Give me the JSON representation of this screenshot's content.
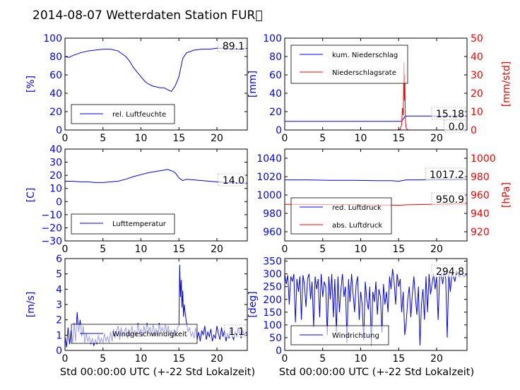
{
  "title": "2014-08-07 Wetterdaten Station FUR\u0000",
  "xlabel": "Std 00:00:00 UTC (+-22 Std Lokalzeit)",
  "colors": {
    "primary": "#0000ff",
    "secondary": "#ff0000",
    "axis": "#000000"
  },
  "chart_data": [
    {
      "type": "line",
      "ylabel": "[%]",
      "xlim": [
        0,
        24
      ],
      "ylim": [
        0,
        100
      ],
      "xticks": [
        "0",
        "5",
        "10",
        "15",
        "20"
      ],
      "yticks": [
        "0",
        "20",
        "40",
        "60",
        "80",
        "100"
      ],
      "series": [
        {
          "name": "rel. Luftfeuchte",
          "x": [
            0,
            0.5,
            1,
            2,
            3,
            4,
            5,
            6,
            7,
            7.5,
            8,
            8.5,
            9,
            9.5,
            10,
            10.5,
            11,
            11.5,
            12,
            12.5,
            13,
            13.5,
            14,
            14.5,
            15,
            15.2,
            15.5,
            16,
            17,
            18,
            19,
            20,
            21,
            22,
            23,
            24
          ],
          "y": [
            80,
            79,
            81,
            84,
            86,
            87,
            88,
            88,
            86,
            83,
            80,
            75,
            68,
            63,
            58,
            53,
            50,
            48,
            47,
            46,
            46,
            44,
            42,
            48,
            58,
            66,
            78,
            84,
            87,
            88,
            88,
            89,
            89,
            88,
            88,
            89
          ]
        }
      ],
      "annotation": "89.1"
    },
    {
      "type": "line",
      "ylabel": "[mm]",
      "y2label": "[mm/std]",
      "xlim": [
        0,
        24
      ],
      "ylim": [
        0,
        100
      ],
      "y2lim": [
        0,
        50
      ],
      "xticks": [
        "0",
        "5",
        "10",
        "15",
        "20"
      ],
      "yticks": [
        "0",
        "20",
        "40",
        "60",
        "80",
        "100"
      ],
      "y2ticks": [
        "0",
        "10",
        "20",
        "30",
        "40",
        "50"
      ],
      "series": [
        {
          "name": "kum. Niederschlag",
          "axis": "left",
          "x": [
            0,
            15.2,
            15.4,
            15.6,
            15.8,
            16,
            24
          ],
          "y": [
            9.4,
            9.4,
            9.8,
            12,
            14.5,
            15.18,
            15.18
          ]
        },
        {
          "name": "Niederschlagsrate",
          "axis": "right",
          "x": [
            0,
            14.8,
            15.2,
            15.4,
            15.5,
            15.6,
            15.65,
            15.7,
            15.75,
            15.8,
            15.9,
            16,
            16.2,
            24
          ],
          "y": [
            0,
            0,
            0.4,
            3,
            12,
            8,
            20,
            37,
            16,
            30,
            4,
            1,
            0,
            0
          ]
        }
      ],
      "annotations": [
        "15.18",
        "0.0"
      ]
    },
    {
      "type": "line",
      "ylabel": "[C]",
      "xlim": [
        0,
        24
      ],
      "ylim": [
        -30,
        40
      ],
      "xticks": [
        "0",
        "5",
        "10",
        "15",
        "20"
      ],
      "yticks": [
        "−30",
        "−20",
        "−10",
        "0",
        "10",
        "20",
        "30",
        "40"
      ],
      "series": [
        {
          "name": "Lufttemperatur",
          "x": [
            0,
            1,
            2,
            3,
            4,
            5,
            6,
            7,
            8,
            9,
            10,
            11,
            12,
            13,
            13.5,
            14,
            14.5,
            15,
            15.5,
            16,
            17,
            18,
            19,
            20,
            21,
            22,
            23,
            24
          ],
          "y": [
            15.5,
            15.5,
            15,
            15,
            14.5,
            14.5,
            15,
            15.5,
            17,
            19,
            20.5,
            22,
            23,
            24,
            24.5,
            23.5,
            22,
            18,
            16,
            17,
            16.5,
            16,
            15.5,
            15,
            14.5,
            14.2,
            14,
            14
          ]
        }
      ],
      "annotation": "14.0"
    },
    {
      "type": "line",
      "ylabel": "",
      "y2label": "[hPa]",
      "xlim": [
        0,
        24
      ],
      "ylim": [
        950,
        1050
      ],
      "y2lim": [
        910,
        1010
      ],
      "xticks": [
        "0",
        "5",
        "10",
        "15",
        "20"
      ],
      "yticks": [
        "960",
        "980",
        "1000",
        "1020",
        "1040"
      ],
      "y2ticks": [
        "920",
        "940",
        "960",
        "980",
        "1000"
      ],
      "series": [
        {
          "name": "red. Luftdruck",
          "axis": "left",
          "x": [
            0,
            3,
            6,
            9,
            12,
            14,
            15,
            16,
            18,
            20,
            22,
            24
          ],
          "y": [
            1016.5,
            1016.5,
            1016,
            1016,
            1015.5,
            1015.5,
            1015,
            1016.5,
            1016.5,
            1017,
            1017,
            1017.2
          ]
        },
        {
          "name": "abs. Luftdruck",
          "axis": "right",
          "x": [
            0,
            3,
            6,
            9,
            12,
            14,
            15,
            16,
            18,
            20,
            22,
            24
          ],
          "y": [
            949.8,
            949.8,
            949.5,
            949.5,
            949,
            949,
            948.8,
            949.3,
            949.6,
            950,
            950.5,
            950.9
          ]
        }
      ],
      "annotations": [
        "1017.2",
        "950.9"
      ]
    },
    {
      "type": "line",
      "ylabel": "[m/s]",
      "xlim": [
        0,
        24
      ],
      "ylim": [
        0,
        6
      ],
      "xticks": [
        "0",
        "5",
        "10",
        "15",
        "20"
      ],
      "yticks": [
        "0",
        "1",
        "2",
        "3",
        "4",
        "5",
        "6"
      ],
      "series": [
        {
          "name": "Windgeschwindigkeit",
          "x": [
            0,
            0.2,
            0.4,
            0.6,
            0.8,
            1,
            1.2,
            1.4,
            1.6,
            1.8,
            2,
            2.2,
            2.4,
            2.6,
            2.8,
            3,
            3.2,
            3.4,
            3.6,
            3.8,
            4,
            4.2,
            4.4,
            4.6,
            4.8,
            5,
            5.2,
            5.4,
            5.6,
            5.8,
            6,
            6.2,
            6.4,
            6.6,
            6.8,
            7,
            7.2,
            7.4,
            7.6,
            7.8,
            8,
            8.2,
            8.4,
            8.6,
            8.8,
            9,
            9.2,
            9.4,
            9.6,
            9.8,
            10,
            10.2,
            10.4,
            10.6,
            10.8,
            11,
            11.2,
            11.4,
            11.6,
            11.8,
            12,
            12.2,
            12.4,
            12.6,
            12.8,
            13,
            13.2,
            13.4,
            13.6,
            13.8,
            14,
            14.2,
            14.4,
            14.6,
            14.8,
            15,
            15.1,
            15.2,
            15.3,
            15.4,
            15.5,
            15.6,
            15.7,
            15.8,
            16,
            16.2,
            16.4,
            16.6,
            16.8,
            17,
            17.2,
            17.4,
            17.6,
            17.8,
            18,
            18.2,
            18.4,
            18.6,
            18.8,
            19,
            19.2,
            19.4,
            19.6,
            19.8,
            20,
            20.2,
            20.4,
            20.6,
            20.8,
            21,
            21.2,
            21.4,
            21.6,
            21.8,
            22,
            22.2,
            22.4,
            22.6,
            22.8,
            23,
            23.2,
            23.4,
            23.6,
            23.8,
            24
          ],
          "y": [
            0.9,
            0.2,
            1.5,
            0.4,
            1.3,
            0.5,
            1.8,
            0.6,
            2.5,
            1.2,
            2,
            0.9,
            1.6,
            0.5,
            1.1,
            0.6,
            0.9,
            0.4,
            0.8,
            0.3,
            0.7,
            0.4,
            1,
            0.5,
            0.8,
            0.5,
            1.1,
            0.6,
            0.9,
            0.5,
            1.2,
            0.6,
            1.4,
            0.8,
            1.3,
            1.6,
            0.7,
            1.5,
            0.9,
            1.2,
            1.5,
            0.8,
            1.4,
            0.9,
            1.6,
            1,
            1.3,
            0.9,
            1.8,
            1.1,
            1.4,
            0.9,
            1.6,
            1.1,
            1.8,
            1.2,
            1.5,
            1,
            1.7,
            1.1,
            1.4,
            0.9,
            1.8,
            1.2,
            1.5,
            1.1,
            1.7,
            1.2,
            1.6,
            1,
            1.3,
            0.8,
            1.4,
            0.9,
            1.5,
            1.6,
            5.6,
            3.5,
            4.6,
            2.8,
            3.9,
            2.2,
            3,
            2.5,
            1.8,
            1.2,
            1.5,
            0.9,
            1.2,
            0.8,
            1.5,
            0.7,
            1.2,
            0.6,
            1.3,
            1,
            1.6,
            0.7,
            1.2,
            0.9,
            1.4,
            0.6,
            1,
            0.8,
            1.6,
            1.1,
            0.7,
            1.5,
            0.9,
            1.3,
            0.6,
            1.1,
            0.8,
            1.4,
            1,
            0.7,
            1.2,
            0.9,
            1.5,
            1.1,
            0.8,
            1.3,
            1,
            1.2,
            1.1
          ]
        }
      ],
      "annotation": "1.1"
    },
    {
      "type": "line",
      "ylabel": "[deg]",
      "xlim": [
        0,
        24
      ],
      "ylim": [
        0,
        360
      ],
      "xticks": [
        "0",
        "5",
        "10",
        "15",
        "20"
      ],
      "yticks": [
        "0",
        "50",
        "100",
        "150",
        "200",
        "250",
        "300",
        "350"
      ],
      "series": [
        {
          "name": "Windrichtung",
          "x": [
            0,
            0.2,
            0.4,
            0.6,
            0.8,
            1,
            1.2,
            1.4,
            1.6,
            1.8,
            2,
            2.2,
            2.4,
            2.6,
            2.8,
            3,
            3.2,
            3.4,
            3.6,
            3.8,
            4,
            4.2,
            4.4,
            4.6,
            4.8,
            5,
            5.2,
            5.4,
            5.6,
            5.8,
            6,
            6.2,
            6.4,
            6.6,
            6.8,
            7,
            7.2,
            7.4,
            7.6,
            7.8,
            8,
            8.2,
            8.4,
            8.6,
            8.8,
            9,
            9.2,
            9.4,
            9.6,
            9.8,
            10,
            10.2,
            10.4,
            10.6,
            10.8,
            11,
            11.2,
            11.4,
            11.6,
            11.8,
            12,
            12.2,
            12.4,
            12.6,
            12.8,
            13,
            13.2,
            13.4,
            13.6,
            13.8,
            14,
            14.2,
            14.4,
            14.6,
            14.8,
            15,
            15.2,
            15.4,
            15.6,
            15.8,
            16,
            16.2,
            16.4,
            16.6,
            16.8,
            17,
            17.2,
            17.4,
            17.6,
            17.8,
            18,
            18.2,
            18.4,
            18.6,
            18.8,
            19,
            19.2,
            19.4,
            19.6,
            19.8,
            20,
            20.2,
            20.4,
            20.6,
            20.8,
            21,
            21.2,
            21.4,
            21.6,
            21.8,
            22,
            22.2,
            22.4,
            22.6,
            22.8,
            23,
            23.2,
            23.4,
            23.6,
            23.8,
            24
          ],
          "y": [
            300,
            260,
            295,
            180,
            290,
            270,
            300,
            110,
            280,
            230,
            290,
            120,
            295,
            260,
            170,
            280,
            300,
            200,
            270,
            90,
            290,
            240,
            280,
            130,
            300,
            210,
            270,
            250,
            60,
            290,
            200,
            300,
            130,
            280,
            70,
            290,
            150,
            240,
            300,
            210,
            250,
            30,
            280,
            190,
            300,
            220,
            150,
            260,
            290,
            120,
            230,
            180,
            40,
            270,
            200,
            160,
            250,
            20,
            230,
            190,
            270,
            140,
            240,
            210,
            70,
            260,
            180,
            230,
            150,
            290,
            240,
            320,
            270,
            180,
            300,
            250,
            280,
            150,
            230,
            60,
            110,
            200,
            250,
            130,
            220,
            290,
            210,
            140,
            250,
            20,
            180,
            240,
            120,
            290,
            150,
            300,
            220,
            260,
            300,
            240,
            290,
            120,
            290,
            300,
            260,
            310,
            280,
            50,
            300,
            230,
            300,
            290,
            270,
            310,
            300,
            290,
            300,
            295,
            290,
            295,
            300
          ]
        }
      ],
      "annotation": "294.8"
    }
  ]
}
